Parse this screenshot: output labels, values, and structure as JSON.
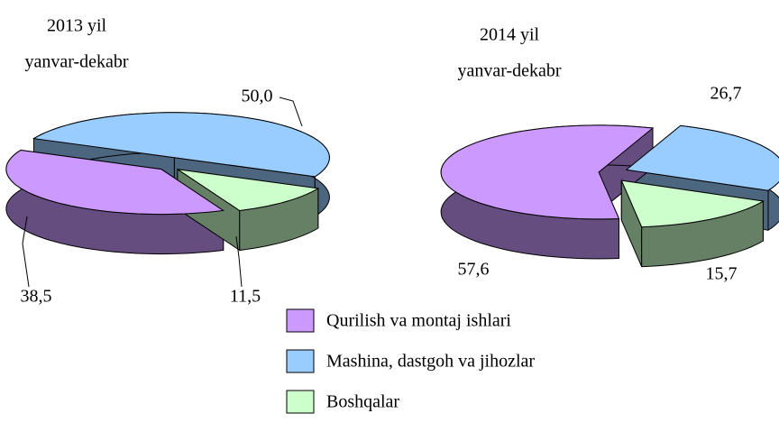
{
  "chart_data": [
    {
      "type": "pie",
      "title": "2013 yil",
      "subtitle": "yanvar-dekabr",
      "categories": [
        "Qurilish va montaj ishlari",
        "Mashina, dastgoh va jihozlar",
        "Boshqalar"
      ],
      "values": [
        38.5,
        50.0,
        11.5
      ],
      "value_labels": [
        "38,5",
        "50,0",
        "11,5"
      ],
      "colors": [
        "#cc99ff",
        "#99ccff",
        "#ccffcc"
      ]
    },
    {
      "type": "pie",
      "title": "2014 yil",
      "subtitle": "yanvar-dekabr",
      "categories": [
        "Qurilish va montaj ishlari",
        "Mashina, dastgoh va jihozlar",
        "Boshqalar"
      ],
      "values": [
        57.6,
        26.7,
        15.7
      ],
      "value_labels": [
        "57,6",
        "26,7",
        "15,7"
      ],
      "colors": [
        "#cc99ff",
        "#99ccff",
        "#ccffcc"
      ]
    }
  ]
}
